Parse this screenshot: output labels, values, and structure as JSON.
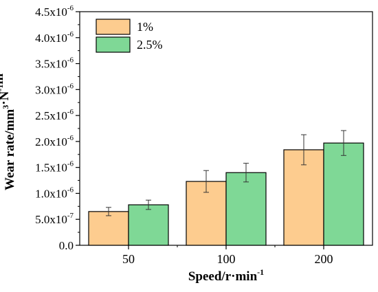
{
  "chart_data": {
    "type": "bar",
    "categories": [
      "50",
      "100",
      "200"
    ],
    "series": [
      {
        "name": "1%",
        "values": [
          6.5e-07,
          1.23e-06,
          1.84e-06
        ],
        "errors": [
          8e-08,
          2.1e-07,
          2.9e-07
        ],
        "color": "#FDCC8F"
      },
      {
        "name": "2.5%",
        "values": [
          7.8e-07,
          1.4e-06,
          1.97e-06
        ],
        "errors": [
          9e-08,
          1.8e-07,
          2.4e-07
        ],
        "color": "#7FD896"
      }
    ],
    "xlabel": "Speed/r·min",
    "xlabel_sup": "-1",
    "ylabel": "Wear rate/mm",
    "ylabel_parts": [
      {
        "text": "Wear rate/mm",
        "sup": "3"
      },
      {
        "text": "·N",
        "sup": "-1"
      },
      {
        "text": "m",
        "sup": "-1"
      }
    ],
    "ylim": [
      0,
      4.5e-06
    ],
    "yticks": [
      {
        "value": 0,
        "base": "0.0",
        "exp": ""
      },
      {
        "value": 5e-07,
        "base": "5.0x10",
        "exp": "-7"
      },
      {
        "value": 1e-06,
        "base": "1.0x10",
        "exp": "-6"
      },
      {
        "value": 1.5e-06,
        "base": "1.5x10",
        "exp": "-6"
      },
      {
        "value": 2e-06,
        "base": "2.0x10",
        "exp": "-6"
      },
      {
        "value": 2.5e-06,
        "base": "2.5x10",
        "exp": "-6"
      },
      {
        "value": 3e-06,
        "base": "3.0x10",
        "exp": "-6"
      },
      {
        "value": 3.5e-06,
        "base": "3.5x10",
        "exp": "-6"
      },
      {
        "value": 4e-06,
        "base": "4.0x10",
        "exp": "-6"
      },
      {
        "value": 4.5e-06,
        "base": "4.5x10",
        "exp": "-6"
      }
    ],
    "legend_position": "top-left",
    "grid": false,
    "bar_edge_color": "#000000"
  }
}
